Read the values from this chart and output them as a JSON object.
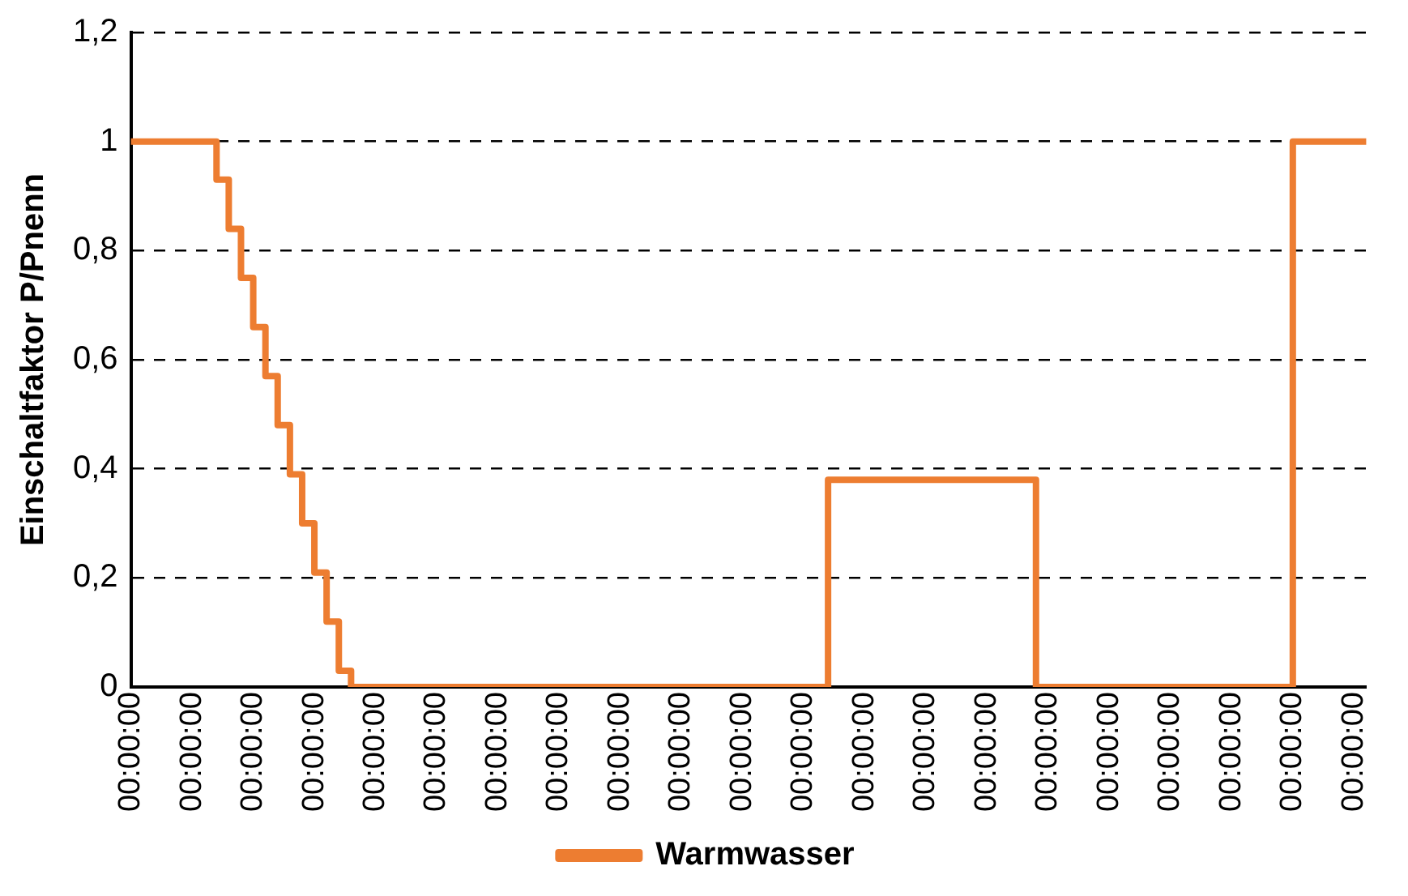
{
  "chart_data": {
    "type": "step",
    "ylabel": "Einschaltfaktor P/Pnenn",
    "categories": [
      "00:00:00",
      null,
      null,
      null,
      null,
      "00:00:00",
      null,
      null,
      null,
      null,
      "00:00:00",
      null,
      null,
      null,
      null,
      "00:00:00",
      null,
      null,
      null,
      null,
      "00:00:00",
      null,
      null,
      null,
      null,
      "00:00:00",
      null,
      null,
      null,
      null,
      "00:00:00",
      null,
      null,
      null,
      null,
      "00:00:00",
      null,
      null,
      null,
      null,
      "00:00:00",
      null,
      null,
      null,
      null,
      "00:00:00",
      null,
      null,
      null,
      null,
      "00:00:00",
      null,
      null,
      null,
      null,
      "00:00:00",
      null,
      null,
      null,
      null,
      "00:00:00",
      null,
      null,
      null,
      null,
      "00:00:00",
      null,
      null,
      null,
      null,
      "00:00:00",
      null,
      null,
      null,
      null,
      "00:00:00",
      null,
      null,
      null,
      null,
      "00:00:00",
      null,
      null,
      null,
      null,
      "00:00:00",
      null,
      null,
      null,
      null,
      "00:00:00",
      null,
      null,
      null,
      null,
      "00:00:00",
      null,
      null,
      null,
      null,
      "00:00:00",
      null
    ],
    "series": [
      {
        "name": "Warmwasser",
        "color": "#ed7d31",
        "values": [
          1,
          1,
          1,
          1,
          1,
          1,
          1,
          0.93,
          0.84,
          0.75,
          0.66,
          0.57,
          0.48,
          0.39,
          0.3,
          0.21,
          0.12,
          0.03,
          0,
          0,
          0,
          0,
          0,
          0,
          0,
          0,
          0,
          0,
          0,
          0,
          0,
          0,
          0,
          0,
          0,
          0,
          0,
          0,
          0,
          0,
          0,
          0,
          0,
          0,
          0,
          0,
          0,
          0,
          0,
          0,
          0,
          0,
          0,
          0,
          0,
          0,
          0,
          0.38,
          0.38,
          0.38,
          0.38,
          0.38,
          0.38,
          0.38,
          0.38,
          0.38,
          0.38,
          0.38,
          0.38,
          0.38,
          0.38,
          0.38,
          0.38,
          0.38,
          0,
          0,
          0,
          0,
          0,
          0,
          0,
          0,
          0,
          0,
          0,
          0,
          0,
          0,
          0,
          0,
          0,
          0,
          0,
          0,
          0,
          1,
          1,
          1,
          1,
          1,
          1,
          1
        ]
      }
    ],
    "ylim": [
      0,
      1.2
    ],
    "yticks": [
      {
        "value": 0,
        "label": "0"
      },
      {
        "value": 0.2,
        "label": "0,2"
      },
      {
        "value": 0.4,
        "label": "0,4"
      },
      {
        "value": 0.6,
        "label": "0,6"
      },
      {
        "value": 0.8,
        "label": "0,8"
      },
      {
        "value": 1,
        "label": "1"
      },
      {
        "value": 1.2,
        "label": "1,2"
      }
    ],
    "grid": "y",
    "legend": "bottom"
  }
}
